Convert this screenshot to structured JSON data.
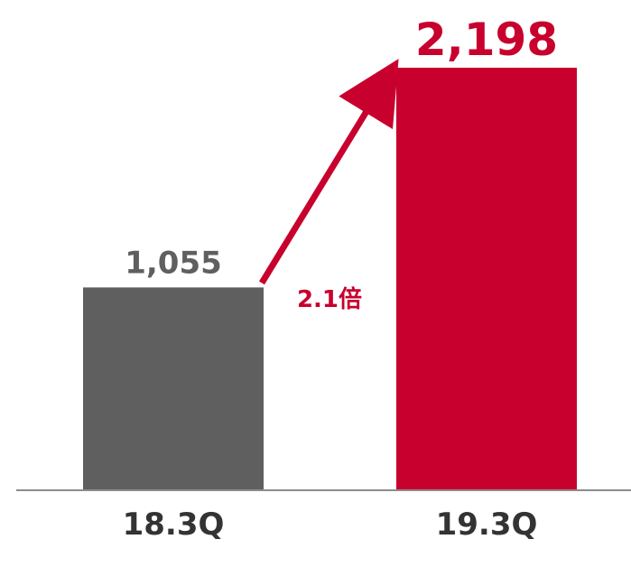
{
  "chart_data": {
    "type": "bar",
    "title": "",
    "xlabel": "",
    "ylabel": "",
    "categories": [
      "18.3Q",
      "19.3Q"
    ],
    "values": [
      1055,
      2198
    ],
    "value_labels": [
      "1,055",
      "2,198"
    ],
    "bar_colors": [
      "#5f5f5f",
      "#c8002d"
    ],
    "value_label_colors": [
      "#5f5f5f",
      "#c8002d"
    ],
    "ylim": [
      0,
      2198
    ],
    "grid": false,
    "legend": "none",
    "annotation": {
      "text": "2.1倍",
      "color": "#c8002d",
      "from_category": "18.3Q",
      "to_category": "19.3Q"
    }
  }
}
